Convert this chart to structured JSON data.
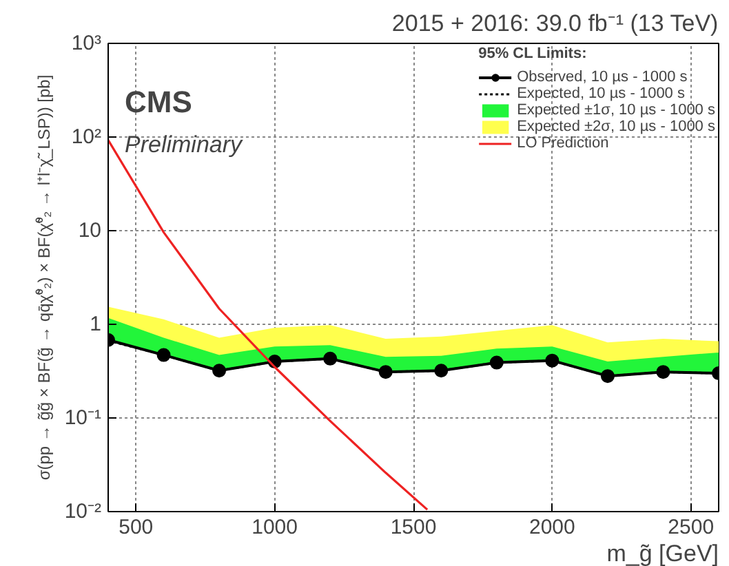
{
  "chart_data": {
    "type": "line",
    "title": "2015 + 2016: 39.0 fb⁻¹ (13 TeV)",
    "xlabel": "m_g̃ [GeV]",
    "ylabel": "σ(pp → g̃g̃ × BF(g̃ → qq̄χ̃⁰₂) × BF(χ̃⁰₂ → l⁺l⁻χ̃_LSP)) [pb]",
    "legend_title": "95% CL Limits:",
    "annotations": [
      "CMS",
      "Preliminary"
    ],
    "x": [
      400,
      600,
      800,
      1000,
      1200,
      1400,
      1600,
      1800,
      2000,
      2200,
      2400,
      2600
    ],
    "series": [
      {
        "name": "Observed, 10 µs - 1000 s",
        "color": "#000000",
        "line_style": "solid",
        "marker": "circle",
        "values": [
          0.68,
          0.47,
          0.32,
          0.4,
          0.43,
          0.31,
          0.32,
          0.39,
          0.41,
          0.28,
          0.31,
          0.3
        ]
      },
      {
        "name": "Expected, 10 µs - 1000 s",
        "type": "line",
        "color": "#000000",
        "line_style": "dotted",
        "marker": "none",
        "values": [
          0.67,
          0.47,
          0.32,
          0.4,
          0.43,
          0.31,
          0.32,
          0.39,
          0.41,
          0.28,
          0.31,
          0.3
        ]
      },
      {
        "name": "Expected ±1σ, 10 µs - 1000 s",
        "type": "area",
        "color": "#22f53a",
        "values": [
          1.17,
          0.72,
          0.47,
          0.58,
          0.6,
          0.45,
          0.46,
          0.55,
          0.58,
          0.4,
          0.45,
          0.5
        ]
      },
      {
        "name": "Expected ±2σ, 10 µs - 1000 s",
        "type": "area",
        "color": "#ffff4d",
        "values": [
          1.54,
          1.13,
          0.72,
          0.92,
          0.98,
          0.7,
          0.74,
          0.85,
          0.98,
          0.64,
          0.7,
          0.66
        ]
      },
      {
        "name": "LO Prediction",
        "type": "line",
        "color": "#ee2222",
        "line_style": "solid",
        "marker": "none",
        "x": [
          400,
          600,
          800,
          1000,
          1200,
          1400,
          1550
        ],
        "values": [
          93,
          9.6,
          1.47,
          0.35,
          0.093,
          0.026,
          0.0105
        ]
      }
    ],
    "xlim": [
      400,
      2600
    ],
    "xticks": [
      500,
      1000,
      1500,
      2000,
      2500
    ],
    "ylim": [
      0.01,
      1000
    ],
    "yticks": [
      {
        "value": 0.01,
        "label": "10⁻²"
      },
      {
        "value": 0.1,
        "label": "10⁻¹"
      },
      1,
      10,
      {
        "value": 100,
        "label": "10²"
      },
      {
        "value": 1000,
        "label": "10³"
      }
    ],
    "log": true,
    "grid": true,
    "legend": "top right"
  }
}
